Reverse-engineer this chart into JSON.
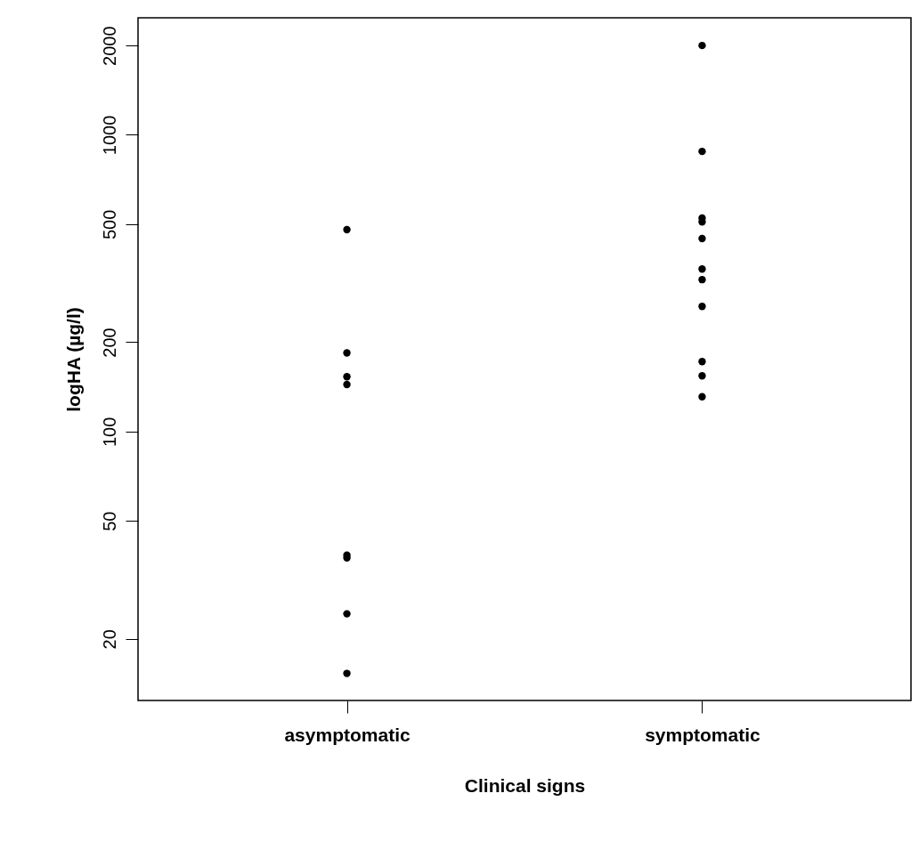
{
  "chart_data": {
    "type": "scatter",
    "xlabel": "Clinical signs",
    "ylabel": "logHA (µg/l)",
    "categories": [
      "asymptomatic",
      "symptomatic"
    ],
    "series": [
      {
        "color": "#000000",
        "x": [
          "asymptomatic",
          "asymptomatic",
          "asymptomatic",
          "asymptomatic",
          "asymptomatic",
          "asymptomatic",
          "asymptomatic",
          "asymptomatic",
          "symptomatic",
          "symptomatic",
          "symptomatic",
          "symptomatic",
          "symptomatic",
          "symptomatic",
          "symptomatic",
          "symptomatic",
          "symptomatic",
          "symptomatic",
          "symptomatic"
        ],
        "values": [
          479,
          184,
          153,
          144,
          38.3,
          37.5,
          24.3,
          15.3,
          2000,
          879,
          524,
          509,
          447,
          353,
          325,
          264,
          172,
          154,
          131
        ]
      }
    ],
    "log": "y",
    "ylim": [
      12.4,
      2480
    ],
    "yticks": [
      20,
      50,
      100,
      200,
      500,
      1000,
      2000
    ],
    "marker": "circle",
    "grid": false
  }
}
